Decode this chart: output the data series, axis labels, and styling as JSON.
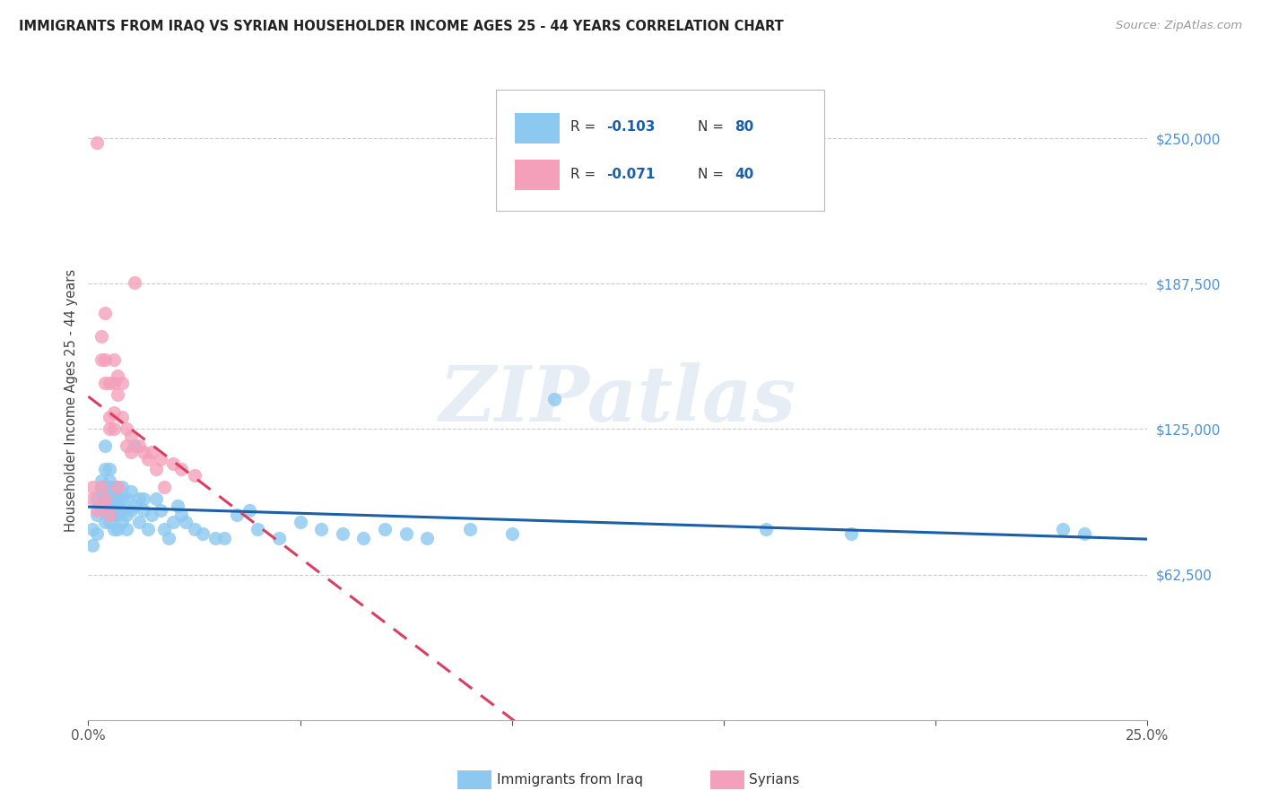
{
  "title": "IMMIGRANTS FROM IRAQ VS SYRIAN HOUSEHOLDER INCOME AGES 25 - 44 YEARS CORRELATION CHART",
  "source": "Source: ZipAtlas.com",
  "ylabel": "Householder Income Ages 25 - 44 years",
  "xlim": [
    0.0,
    0.25
  ],
  "ylim": [
    0,
    275000
  ],
  "color_iraq": "#8CC8F0",
  "color_syria": "#F5A0BA",
  "line_color_iraq": "#1B5FA8",
  "line_color_syria": "#D94060",
  "watermark": "ZIPatlas",
  "iraq_x": [
    0.001,
    0.001,
    0.002,
    0.002,
    0.002,
    0.003,
    0.003,
    0.003,
    0.003,
    0.004,
    0.004,
    0.004,
    0.004,
    0.004,
    0.004,
    0.005,
    0.005,
    0.005,
    0.005,
    0.005,
    0.005,
    0.005,
    0.005,
    0.006,
    0.006,
    0.006,
    0.006,
    0.006,
    0.007,
    0.007,
    0.007,
    0.007,
    0.007,
    0.008,
    0.008,
    0.008,
    0.008,
    0.009,
    0.009,
    0.009,
    0.01,
    0.01,
    0.011,
    0.011,
    0.012,
    0.012,
    0.013,
    0.013,
    0.014,
    0.015,
    0.016,
    0.017,
    0.018,
    0.019,
    0.02,
    0.021,
    0.022,
    0.023,
    0.025,
    0.027,
    0.03,
    0.032,
    0.035,
    0.038,
    0.04,
    0.045,
    0.05,
    0.055,
    0.06,
    0.065,
    0.07,
    0.075,
    0.08,
    0.09,
    0.1,
    0.11,
    0.16,
    0.18,
    0.23,
    0.235
  ],
  "iraq_y": [
    75000,
    82000,
    80000,
    88000,
    95000,
    92000,
    98000,
    103000,
    100000,
    85000,
    90000,
    95000,
    100000,
    108000,
    118000,
    85000,
    88000,
    92000,
    95000,
    98000,
    100000,
    103000,
    108000,
    82000,
    88000,
    92000,
    95000,
    100000,
    82000,
    88000,
    92000,
    95000,
    100000,
    85000,
    90000,
    95000,
    100000,
    82000,
    88000,
    95000,
    90000,
    98000,
    92000,
    118000,
    85000,
    95000,
    90000,
    95000,
    82000,
    88000,
    95000,
    90000,
    82000,
    78000,
    85000,
    92000,
    88000,
    85000,
    82000,
    80000,
    78000,
    78000,
    88000,
    90000,
    82000,
    78000,
    85000,
    82000,
    80000,
    78000,
    82000,
    80000,
    78000,
    82000,
    80000,
    138000,
    82000,
    80000,
    82000,
    80000
  ],
  "syria_x": [
    0.001,
    0.001,
    0.002,
    0.002,
    0.003,
    0.003,
    0.003,
    0.003,
    0.004,
    0.004,
    0.004,
    0.004,
    0.005,
    0.005,
    0.005,
    0.005,
    0.006,
    0.006,
    0.006,
    0.006,
    0.007,
    0.007,
    0.007,
    0.008,
    0.008,
    0.009,
    0.009,
    0.01,
    0.01,
    0.011,
    0.012,
    0.013,
    0.014,
    0.015,
    0.016,
    0.017,
    0.018,
    0.02,
    0.022,
    0.025
  ],
  "syria_y": [
    95000,
    100000,
    90000,
    248000,
    92000,
    155000,
    165000,
    100000,
    95000,
    175000,
    155000,
    145000,
    88000,
    130000,
    125000,
    145000,
    125000,
    132000,
    145000,
    155000,
    140000,
    148000,
    100000,
    130000,
    145000,
    125000,
    118000,
    122000,
    115000,
    188000,
    118000,
    115000,
    112000,
    115000,
    108000,
    112000,
    100000,
    110000,
    108000,
    105000
  ]
}
